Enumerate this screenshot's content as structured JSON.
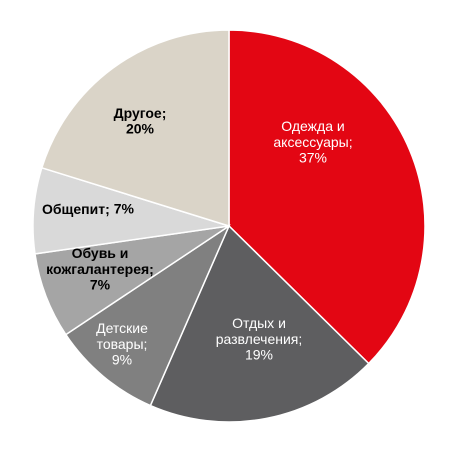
{
  "chart_data": {
    "type": "pie",
    "categories": [
      "Одежда и аксессуары;",
      "Отдых и развлечения;",
      "Детские товары;",
      "Обувь и кожгалантерея;",
      "Общепит;",
      "Другое;"
    ],
    "values": [
      37,
      19,
      9,
      7,
      7,
      20
    ],
    "value_labels": [
      "37%",
      "19%",
      "9%",
      "7%",
      "7%",
      "20%"
    ],
    "colors": [
      "#e30613",
      "#5e5e60",
      "#808080",
      "#a5a5a5",
      "#d9d9d9",
      "#dad4c8"
    ]
  }
}
